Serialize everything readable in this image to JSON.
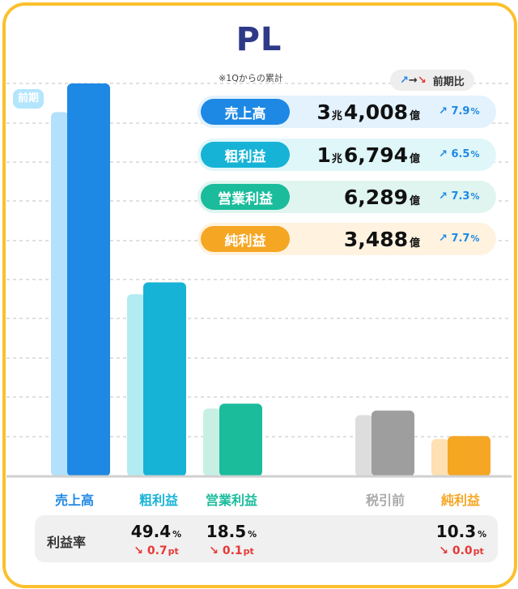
{
  "title": "PL",
  "subtitle": "※1Qからの累計",
  "legend": {
    "up": "↗",
    "arrow": "→",
    "down": "↘",
    "label": "前期比"
  },
  "previous_label": "前期",
  "summary_rows": [
    {
      "label": "売上高",
      "big": "3",
      "big_unit": "兆",
      "value": "4,008",
      "unit": "億",
      "change_icon": "↗",
      "change": "7.9",
      "change_unit": "%",
      "color": "#1e88e5",
      "bg": "#e3f2fd"
    },
    {
      "label": "粗利益",
      "big": "1",
      "big_unit": "兆",
      "value": "6,794",
      "unit": "億",
      "change_icon": "↗",
      "change": "6.5",
      "change_unit": "%",
      "color": "#17b3d6",
      "bg": "#e0f7fa"
    },
    {
      "label": "営業利益",
      "big": "",
      "big_unit": "",
      "value": "6,289",
      "unit": "億",
      "change_icon": "↗",
      "change": "7.3",
      "change_unit": "%",
      "color": "#1abc9c",
      "bg": "#e0f5ef"
    },
    {
      "label": "純利益",
      "big": "",
      "big_unit": "",
      "value": "3,488",
      "unit": "億",
      "change_icon": "↗",
      "change": "7.7",
      "change_unit": "%",
      "color": "#f5a623",
      "bg": "#fff3e0"
    }
  ],
  "margin_title": "利益率",
  "margins": [
    {
      "value": "49.4",
      "unit": "%",
      "change_icon": "↘",
      "change": "0.7",
      "change_unit": "pt"
    },
    {
      "value": "18.5",
      "unit": "%",
      "change_icon": "↘",
      "change": "0.1",
      "change_unit": "pt"
    },
    {
      "value": "10.3",
      "unit": "%",
      "change_icon": "↘",
      "change": "0.0",
      "change_unit": "pt"
    }
  ],
  "chart_data": {
    "type": "bar",
    "categories": [
      "売上高",
      "粗利益",
      "営業利益",
      "税引前",
      "純利益"
    ],
    "series": [
      {
        "name": "前期",
        "values": [
          31525,
          15770,
          5862,
          5300,
          3238
        ]
      },
      {
        "values": [
          34008,
          16794,
          6289,
          5700,
          3488
        ]
      }
    ],
    "category_colors": [
      "#1e88e5",
      "#17b3d6",
      "#1abc9c",
      "#9e9e9e",
      "#f5a623"
    ],
    "previous_colors": [
      "#b3e0fb",
      "#b2ebf2",
      "#c8efe3",
      "#dddddd",
      "#ffe0b2"
    ],
    "label_colors": [
      "#1e88e5",
      "#17b3d6",
      "#1abc9c",
      "#aaaaaa",
      "#f5a623"
    ],
    "ylim": [
      0,
      34008
    ],
    "unit": "億円",
    "grid": true
  }
}
